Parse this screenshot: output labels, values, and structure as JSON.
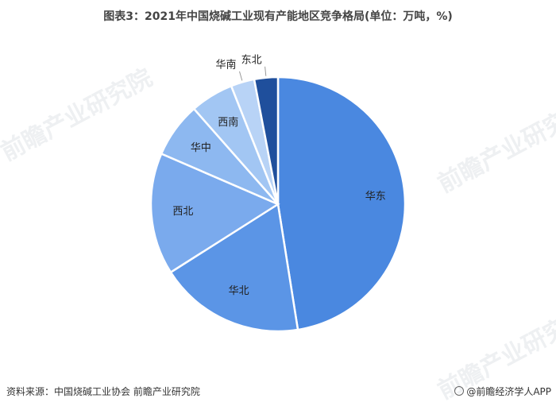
{
  "title": "图表3：2021年中国烧碱工业现有产能地区竞争格局(单位：万吨，%)",
  "source": "资料来源：中国烧碱工业协会 前瞻产业研究院",
  "brand": "@前瞻经济学人APP",
  "watermark": "前瞻产业研究院",
  "chart_data": {
    "type": "pie",
    "start_angle_deg": 0,
    "direction": "clockwise",
    "slices": [
      {
        "label": "华东",
        "value": 47.5,
        "color": "#4a88e0"
      },
      {
        "label": "华北",
        "value": 18.5,
        "color": "#5b95e6"
      },
      {
        "label": "西北",
        "value": 15.5,
        "color": "#7aaaed"
      },
      {
        "label": "华中",
        "value": 7.0,
        "color": "#8db8f0"
      },
      {
        "label": "西南",
        "value": 5.5,
        "color": "#a2c6f3"
      },
      {
        "label": "华南",
        "value": 3.0,
        "color": "#b8d3f6"
      },
      {
        "label": "东北",
        "value": 3.0,
        "color": "#1f4f9c"
      }
    ],
    "legend": "none"
  }
}
